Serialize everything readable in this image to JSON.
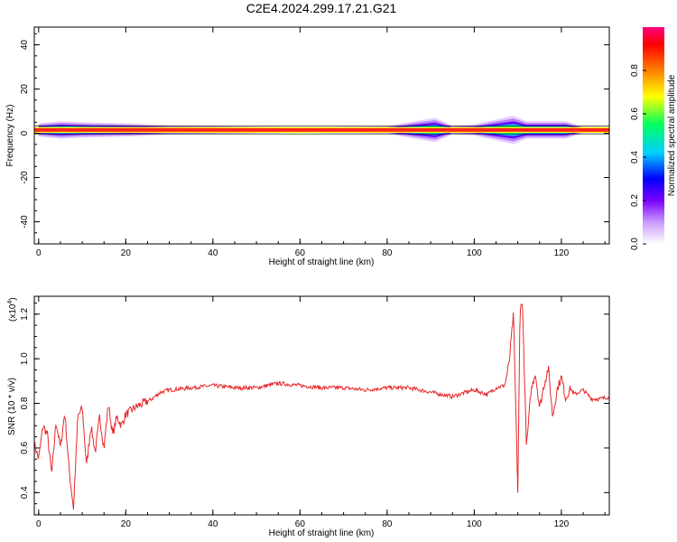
{
  "title": "C2E4.2024.299.17.21.G21",
  "chart_data": [
    {
      "type": "heatmap",
      "xlabel": "Height of straight line (km)",
      "ylabel": "Frequency (Hz)",
      "xlim": [
        -1,
        131
      ],
      "ylim": [
        -50,
        48
      ],
      "x_ticks": [
        0,
        20,
        40,
        60,
        80,
        100,
        120
      ],
      "y_ticks": [
        -40,
        -20,
        0,
        20,
        40
      ],
      "colorbar": {
        "label": "Normalized spectral amplitude",
        "range": [
          0,
          1
        ],
        "ticks": [
          "0.0",
          "0.2",
          "0.4",
          "0.6",
          "0.8"
        ],
        "colors": [
          "#ffffff",
          "#7a00ff",
          "#0000ff",
          "#00d0ff",
          "#00ff60",
          "#ffff00",
          "#ff8000",
          "#ff0000",
          "#ff0080"
        ]
      },
      "band": {
        "center_hz": 1.5,
        "core_halfwidth_hz": 0.8,
        "spread_points": [
          {
            "x": 0,
            "halfwidth": 3
          },
          {
            "x": 5,
            "halfwidth": 4
          },
          {
            "x": 10,
            "halfwidth": 3.5
          },
          {
            "x": 20,
            "halfwidth": 3
          },
          {
            "x": 30,
            "halfwidth": 2.2
          },
          {
            "x": 40,
            "halfwidth": 2
          },
          {
            "x": 60,
            "halfwidth": 1.3
          },
          {
            "x": 80,
            "halfwidth": 1.8
          },
          {
            "x": 88,
            "halfwidth": 4.5
          },
          {
            "x": 91,
            "halfwidth": 5.5
          },
          {
            "x": 95,
            "halfwidth": 2
          },
          {
            "x": 100,
            "halfwidth": 2.5
          },
          {
            "x": 109,
            "halfwidth": 6.5
          },
          {
            "x": 112,
            "halfwidth": 4
          },
          {
            "x": 116,
            "halfwidth": 4
          },
          {
            "x": 121,
            "halfwidth": 4
          },
          {
            "x": 125,
            "halfwidth": 1.5
          },
          {
            "x": 131,
            "halfwidth": 1.5
          }
        ]
      }
    },
    {
      "type": "line",
      "xlabel": "Height of straight line (km)",
      "ylabel": "SNR (10 * v/v)",
      "y_multiplier": "(x10",
      "y_multiplier_exp": "4",
      "y_multiplier_close": ")",
      "xlim": [
        -1,
        131
      ],
      "ylim": [
        0.3,
        1.28
      ],
      "x_ticks": [
        0,
        20,
        40,
        60,
        80,
        100,
        120
      ],
      "y_ticks": [
        "0.4",
        "0.6",
        "0.8",
        "1.0",
        "1.2"
      ],
      "line_color": "#e8282a",
      "series": [
        {
          "x": [
            -1,
            0,
            1,
            2,
            3,
            4,
            5,
            6,
            7,
            8,
            9,
            10,
            11,
            12,
            13,
            14,
            15,
            16,
            17,
            18,
            19,
            20,
            22,
            24,
            26,
            28,
            30,
            35,
            40,
            45,
            50,
            55,
            60,
            65,
            70,
            75,
            80,
            85,
            90,
            95,
            98,
            100,
            103,
            105,
            107,
            108,
            109,
            110,
            110.5,
            111,
            112,
            113,
            114,
            115,
            116,
            117,
            118,
            119,
            120,
            121,
            122,
            123,
            125,
            127,
            129,
            131
          ],
          "y": [
            0.62,
            0.55,
            0.7,
            0.66,
            0.48,
            0.72,
            0.6,
            0.76,
            0.5,
            0.33,
            0.74,
            0.78,
            0.52,
            0.7,
            0.58,
            0.74,
            0.6,
            0.8,
            0.66,
            0.74,
            0.7,
            0.75,
            0.78,
            0.8,
            0.82,
            0.85,
            0.86,
            0.87,
            0.88,
            0.87,
            0.87,
            0.89,
            0.88,
            0.87,
            0.87,
            0.86,
            0.87,
            0.87,
            0.85,
            0.83,
            0.85,
            0.86,
            0.84,
            0.87,
            0.88,
            0.98,
            1.2,
            0.4,
            1.2,
            1.28,
            0.6,
            0.85,
            0.94,
            0.78,
            0.88,
            0.96,
            0.74,
            0.86,
            0.92,
            0.82,
            0.87,
            0.84,
            0.86,
            0.82,
            0.82,
            0.83
          ]
        }
      ]
    }
  ]
}
